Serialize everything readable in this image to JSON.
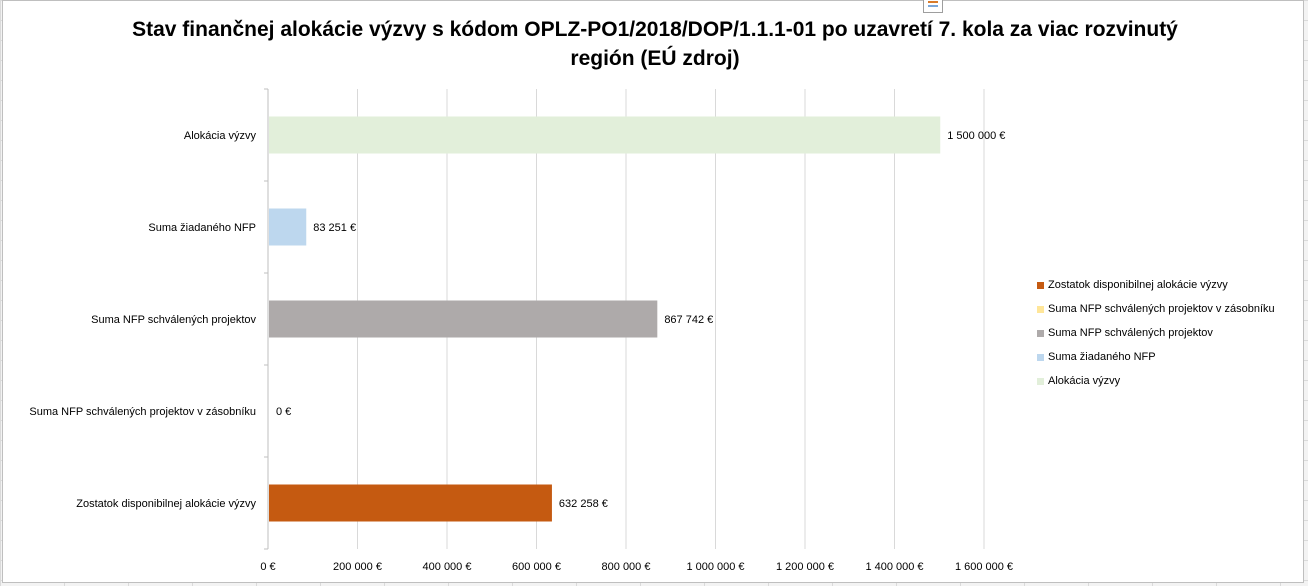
{
  "chart_data": {
    "type": "bar",
    "orientation": "horizontal",
    "title": "Stav finančnej alokácie výzvy s kódom OPLZ-PO1/2018/DOP/1.1.1-01 po uzavretí 7. kola za viac rozvinutý región (EÚ zdroj)",
    "categories": [
      "Alokácia výzvy",
      "Suma žiadaného NFP",
      "Suma NFP schválených projektov",
      "Suma NFP schválených projektov v zásobníku",
      "Zostatok disponibilnej alokácie výzvy"
    ],
    "values": [
      1500000,
      83251,
      867742,
      0,
      632258
    ],
    "value_labels": [
      "1 500 000 €",
      "83 251 €",
      "867 742 €",
      "0 €",
      "632 258 €"
    ],
    "colors": [
      "#e2efda",
      "#bdd7ee",
      "#aeaaaa",
      "#ffe699",
      "#c55a11"
    ],
    "xlim": [
      0,
      1600000
    ],
    "x_ticks": [
      0,
      200000,
      400000,
      600000,
      800000,
      1000000,
      1200000,
      1400000,
      1600000
    ],
    "x_tick_labels": [
      "0 €",
      "200 000 €",
      "400 000 €",
      "600 000 €",
      "800 000 €",
      "1 000 000 €",
      "1 200 000 €",
      "1 400 000 €",
      "1 600 000 €"
    ],
    "grid": true,
    "legend_position": "right",
    "legend": [
      {
        "label": "Zostatok disponibilnej alokácie výzvy",
        "color": "#c55a11"
      },
      {
        "label": "Suma NFP schválených projektov v zásobníku",
        "color": "#ffe699"
      },
      {
        "label": "Suma NFP schválených projektov",
        "color": "#aeaaaa"
      },
      {
        "label": "Suma žiadaného NFP",
        "color": "#bdd7ee"
      },
      {
        "label": "Alokácia výzvy",
        "color": "#e2efda"
      }
    ]
  }
}
